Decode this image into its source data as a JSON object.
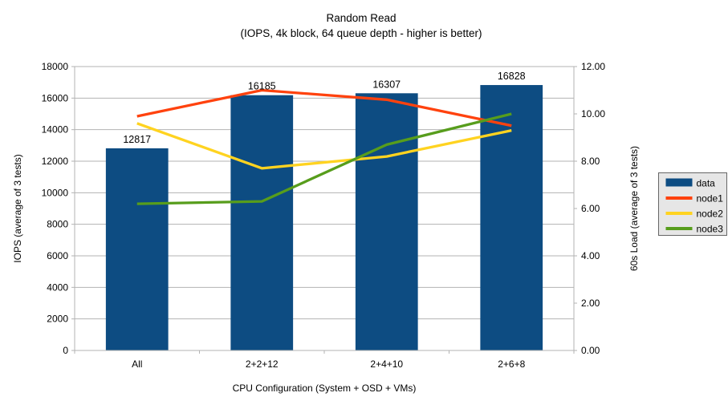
{
  "chart": {
    "title": "Random Read",
    "subtitle": "(IOPS, 4k block, 64 queue depth - higher is better)",
    "xlabel": "CPU Configuration (System + OSD + VMs)",
    "ylabel_left": "IOPS (average of 3 tests)",
    "ylabel_right": "60s Load (average of 3 tests)",
    "colors": {
      "bar": "#0d4c82",
      "node1": "#ff420e",
      "node2": "#ffd320",
      "node3": "#579d1c",
      "grid": "#b3b3b3",
      "axis": "#b3b3b3",
      "legend_bg": "#e6e6e6",
      "legend_border": "#666666"
    }
  },
  "chart_data": {
    "type": "bar",
    "subtype": "bar+line combination, dual axis",
    "title": "Random Read",
    "subtitle": "(IOPS, 4k block, 64 queue depth - higher is better)",
    "xlabel": "CPU Configuration (System + OSD + VMs)",
    "ylabel": "IOPS (average of 3 tests)",
    "ylabel_right": "60s Load (average of 3 tests)",
    "categories": [
      "All",
      "2+2+12",
      "2+4+10",
      "2+6+8"
    ],
    "series": [
      {
        "name": "data",
        "type": "bar",
        "axis": "left",
        "color": "#0d4c82",
        "values": [
          12817,
          16185,
          16307,
          16828
        ]
      },
      {
        "name": "node1",
        "type": "line",
        "axis": "right",
        "color": "#ff420e",
        "values": [
          9.9,
          11.0,
          10.6,
          9.5
        ]
      },
      {
        "name": "node2",
        "type": "line",
        "axis": "right",
        "color": "#ffd320",
        "values": [
          9.6,
          7.7,
          8.2,
          9.3
        ]
      },
      {
        "name": "node3",
        "type": "line",
        "axis": "right",
        "color": "#579d1c",
        "values": [
          6.2,
          6.3,
          8.7,
          10.0
        ]
      }
    ],
    "bar_value_labels": [
      "12817",
      "16185",
      "16307",
      "16828"
    ],
    "left_axis": {
      "min": 0,
      "max": 18000,
      "step": 2000
    },
    "right_axis": {
      "min": 0,
      "max": 12,
      "step": 2,
      "decimals": 2
    },
    "legend": {
      "position": "right",
      "entries": [
        "data",
        "node1",
        "node2",
        "node3"
      ]
    },
    "grid": true
  }
}
